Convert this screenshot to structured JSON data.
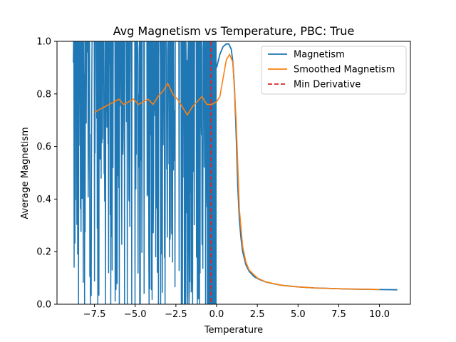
{
  "chart_data": {
    "type": "line",
    "title": "Avg Magnetism vs Temperature, PBC: True",
    "xlabel": "Temperature",
    "ylabel": "Average Magnetism",
    "xlim": [
      -9.8,
      11.9
    ],
    "ylim": [
      0.0,
      1.0
    ],
    "x_ticks": [
      -7.5,
      -5.0,
      -2.5,
      0.0,
      2.5,
      5.0,
      7.5,
      10.0
    ],
    "x_tick_labels": [
      "−7.5",
      "−5.0",
      "−2.5",
      "0.0",
      "2.5",
      "5.0",
      "7.5",
      "10.0"
    ],
    "y_ticks": [
      0.0,
      0.2,
      0.4,
      0.6,
      0.8,
      1.0
    ],
    "y_tick_labels": [
      "0.0",
      "0.2",
      "0.4",
      "0.6",
      "0.8",
      "1.0"
    ],
    "grid": false,
    "legend_position": "top-right",
    "colors": {
      "magnetism": "#1f77b4",
      "smoothed": "#ff7f0e",
      "min_derivative": "#d62728"
    },
    "series": [
      {
        "name": "Magnetism",
        "style": "noisy-solid",
        "x_range": [
          -8.8,
          11.1
        ],
        "noise_band": {
          "x": [
            -8.8,
            0.0
          ],
          "y": [
            0.0,
            1.0
          ]
        },
        "x": [
          0.0,
          0.2,
          0.4,
          0.6,
          0.75,
          0.9,
          1.0,
          1.1,
          1.2,
          1.3,
          1.4,
          1.5,
          1.6,
          1.8,
          2.0,
          2.3,
          2.6,
          3.0,
          3.5,
          4.0,
          5.0,
          6.0,
          7.0,
          8.0,
          9.0,
          10.0,
          11.1
        ],
        "y": [
          0.9,
          0.95,
          0.98,
          0.99,
          0.99,
          0.97,
          0.92,
          0.82,
          0.65,
          0.45,
          0.32,
          0.25,
          0.2,
          0.15,
          0.125,
          0.105,
          0.095,
          0.085,
          0.078,
          0.072,
          0.066,
          0.062,
          0.06,
          0.058,
          0.057,
          0.056,
          0.055
        ]
      },
      {
        "name": "Smoothed Magnetism",
        "style": "solid",
        "x": [
          -7.5,
          -7.2,
          -6.9,
          -6.6,
          -6.3,
          -6.0,
          -5.7,
          -5.4,
          -5.1,
          -4.8,
          -4.5,
          -4.2,
          -3.9,
          -3.6,
          -3.3,
          -3.0,
          -2.7,
          -2.4,
          -2.1,
          -1.8,
          -1.5,
          -1.2,
          -0.9,
          -0.6,
          -0.3,
          0.0,
          0.2,
          0.4,
          0.6,
          0.8,
          1.0,
          1.2,
          1.4,
          1.6,
          1.8,
          2.0,
          2.5,
          3.0,
          4.0,
          5.0,
          6.0,
          7.0,
          8.0,
          9.0,
          10.0
        ],
        "y": [
          0.73,
          0.74,
          0.75,
          0.76,
          0.77,
          0.78,
          0.76,
          0.77,
          0.78,
          0.76,
          0.77,
          0.78,
          0.76,
          0.79,
          0.81,
          0.84,
          0.8,
          0.78,
          0.75,
          0.72,
          0.75,
          0.77,
          0.79,
          0.76,
          0.76,
          0.77,
          0.79,
          0.86,
          0.93,
          0.95,
          0.92,
          0.7,
          0.36,
          0.22,
          0.16,
          0.13,
          0.1,
          0.085,
          0.072,
          0.066,
          0.062,
          0.06,
          0.058,
          0.057,
          0.056
        ]
      }
    ],
    "vlines": [
      {
        "name": "Min Derivative",
        "x": -0.35,
        "style": "dashed"
      }
    ]
  }
}
